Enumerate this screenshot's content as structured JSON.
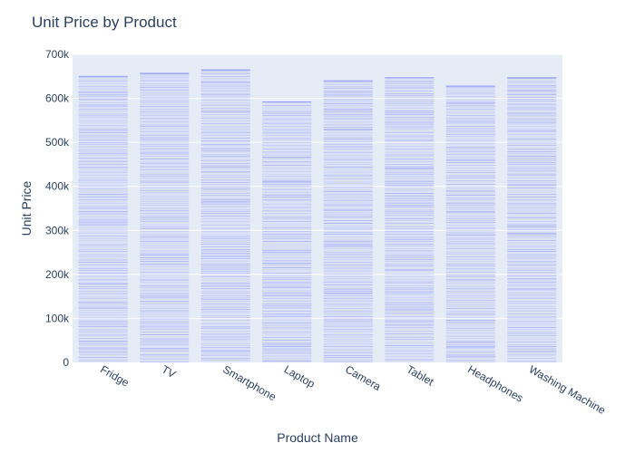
{
  "chart_data": {
    "type": "bar",
    "title": "Unit Price by Product",
    "xlabel": "Product Name",
    "ylabel": "Unit Price",
    "categories": [
      "Fridge",
      "TV",
      "Smartphone",
      "Laptop",
      "Camera",
      "Tablet",
      "Headphones",
      "Washing Machine"
    ],
    "values": [
      650000,
      657000,
      665000,
      592000,
      640000,
      647000,
      628000,
      647000
    ],
    "ylim": [
      0,
      700000
    ],
    "yticks": [
      {
        "value": 0,
        "label": "0"
      },
      {
        "value": 100000,
        "label": "100k"
      },
      {
        "value": 200000,
        "label": "200k"
      },
      {
        "value": 300000,
        "label": "300k"
      },
      {
        "value": 400000,
        "label": "400k"
      },
      {
        "value": 500000,
        "label": "500k"
      },
      {
        "value": 600000,
        "label": "600k"
      },
      {
        "value": 700000,
        "label": "700k"
      }
    ],
    "grid": true,
    "legend": "none",
    "colors": {
      "bar": "#636efa",
      "plot_bg": "#e5ecf6",
      "grid": "#ffffff",
      "text": "#2a3f5f"
    }
  }
}
